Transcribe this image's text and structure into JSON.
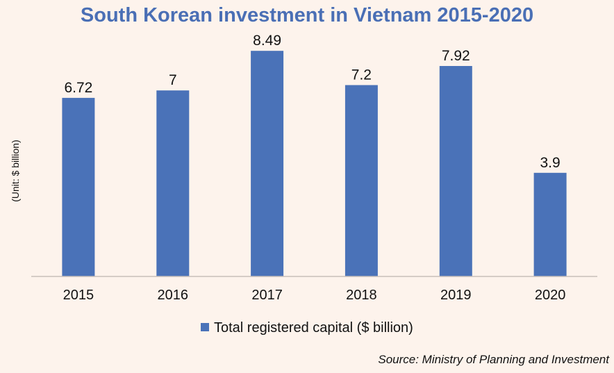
{
  "chart_data": {
    "type": "bar",
    "title": "South Korean investment in Vietnam 2015-2020",
    "ylabel": "(Unit: $ billion)",
    "xlabel": "",
    "categories": [
      "2015",
      "2016",
      "2017",
      "2018",
      "2019",
      "2020"
    ],
    "series": [
      {
        "name": "Total registered capital ($ billion)",
        "values": [
          6.72,
          7,
          8.49,
          7.2,
          7.92,
          3.9
        ],
        "labels": [
          "6.72",
          "7",
          "8.49",
          "7.2",
          "7.92",
          "3.9"
        ],
        "color": "#4a72b8"
      }
    ],
    "ylim": [
      0,
      9.2
    ],
    "grid": false,
    "legend_position": "bottom"
  },
  "source": "Source: Ministry of Planning and Investment",
  "colors": {
    "background": "#fdf3ec",
    "title": "#4a6fb5",
    "bar": "#4a72b8",
    "axis": "#c8c0ba"
  }
}
